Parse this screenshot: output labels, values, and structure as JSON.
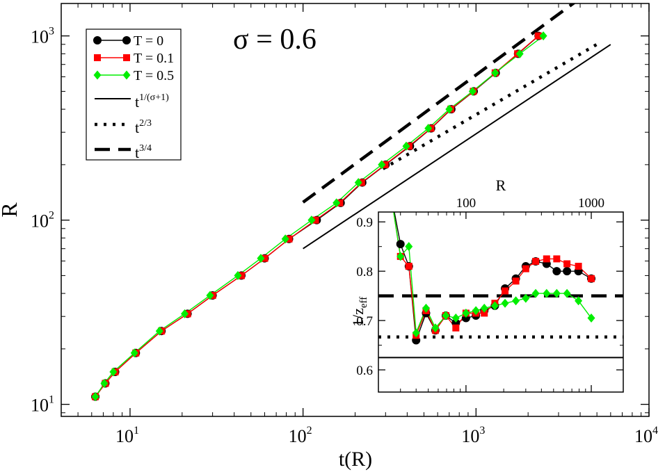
{
  "chart_data": [
    {
      "type": "line",
      "scale": "log-log",
      "annotation": "σ = 0.6",
      "xlabel": "t(R)",
      "ylabel": "R",
      "xlim": [
        4,
        10000
      ],
      "ylim": [
        8.6,
        1500
      ],
      "x_ticks": [
        {
          "value": 10,
          "base": "10",
          "exp": "1"
        },
        {
          "value": 100,
          "base": "10",
          "exp": "2"
        },
        {
          "value": 1000,
          "base": "10",
          "exp": "3"
        },
        {
          "value": 10000,
          "base": "10",
          "exp": "4"
        }
      ],
      "y_ticks": [
        {
          "value": 10,
          "base": "10",
          "exp": "1"
        },
        {
          "value": 100,
          "base": "10",
          "exp": "2"
        },
        {
          "value": 1000,
          "base": "10",
          "exp": "3"
        }
      ],
      "series": [
        {
          "name": "T = 0",
          "color": "#000000",
          "marker": "circle",
          "x": [
            6.3,
            7.2,
            8.2,
            10.8,
            15.2,
            21.5,
            30,
            44,
            60,
            83,
            120,
            165,
            220,
            300,
            415,
            550,
            720,
            970,
            1300,
            1750,
            2300
          ],
          "y": [
            11,
            13,
            15,
            19,
            25,
            31,
            39,
            50,
            62,
            79,
            100,
            124,
            160,
            200,
            252,
            315,
            400,
            500,
            630,
            800,
            1000
          ]
        },
        {
          "name": "T = 0.1",
          "color": "#ff0000",
          "marker": "square",
          "x": [
            6.3,
            7.2,
            8.2,
            10.8,
            15.2,
            21.5,
            30,
            44,
            60,
            83,
            118,
            163,
            218,
            298,
            410,
            548,
            715,
            965,
            1290,
            1740,
            2290
          ],
          "y": [
            11,
            13,
            15,
            19,
            25,
            31,
            39,
            50,
            62,
            79,
            100,
            124,
            160,
            200,
            252,
            315,
            400,
            500,
            630,
            800,
            1000
          ]
        },
        {
          "name": "T = 0.5",
          "color": "#00ee00",
          "marker": "diamond",
          "x": [
            6.3,
            7.1,
            8.0,
            10.6,
            14.8,
            20.7,
            29,
            42,
            57,
            79,
            112,
            156,
            209,
            285,
            395,
            530,
            700,
            955,
            1290,
            1790,
            2450
          ],
          "y": [
            11,
            13,
            15,
            19,
            25,
            31,
            39,
            50,
            62,
            79,
            100,
            124,
            160,
            200,
            252,
            315,
            400,
            500,
            630,
            800,
            1000
          ]
        }
      ],
      "reference_lines": [
        {
          "name": "t^{1/(σ+1)}",
          "base": "t",
          "exp": "1/(σ+1)",
          "style": "solid",
          "x": [
            100,
            6000
          ],
          "y": [
            70,
            898
          ]
        },
        {
          "name": "t^{2/3}",
          "base": "t",
          "exp": "2/3",
          "style": "dotted",
          "x": [
            290,
            5000
          ],
          "y": [
            190,
            900
          ]
        },
        {
          "name": "t^{3/4}",
          "base": "t",
          "exp": "3/4",
          "style": "dashed",
          "x": [
            100,
            4000
          ],
          "y": [
            125,
            1600
          ]
        }
      ],
      "legend_position": "top-left"
    },
    {
      "type": "line",
      "scale": "log-x",
      "inset": true,
      "xlabel": "R",
      "ylabel": "1/z_eff",
      "ylabel_base": "1/z",
      "ylabel_sub": "eff",
      "xlim": [
        20,
        1800
      ],
      "ylim": [
        0.555,
        0.92
      ],
      "x_ticks_top": [
        {
          "value": 100,
          "label": "100"
        },
        {
          "value": 1000,
          "label": "1000"
        }
      ],
      "y_ticks": [
        {
          "value": 0.6,
          "label": "0.6"
        },
        {
          "value": 0.7,
          "label": "0.7"
        },
        {
          "value": 0.8,
          "label": "0.8"
        },
        {
          "value": 0.9,
          "label": "0.9"
        }
      ],
      "hlines": [
        {
          "value": 0.75,
          "style": "dashed"
        },
        {
          "value": 0.6667,
          "style": "dotted"
        },
        {
          "value": 0.625,
          "style": "solid"
        }
      ],
      "series": [
        {
          "name": "T = 0",
          "color": "#000000",
          "marker": "circle",
          "x": [
            25,
            30,
            35,
            40,
            48,
            57,
            69,
            83,
            100,
            120,
            140,
            170,
            205,
            250,
            300,
            360,
            440,
            530,
            640,
            790,
            1000
          ],
          "y": [
            0.96,
            0.855,
            0.81,
            0.66,
            0.715,
            0.68,
            0.71,
            0.695,
            0.705,
            0.71,
            0.72,
            0.73,
            0.765,
            0.785,
            0.81,
            0.82,
            0.815,
            0.8,
            0.8,
            0.8,
            0.785
          ],
          "markers_from_index": 1
        },
        {
          "name": "T = 0.1",
          "color": "#ff0000",
          "marker": "square",
          "x": [
            25,
            30,
            35,
            40,
            48,
            57,
            69,
            83,
            100,
            120,
            140,
            170,
            205,
            250,
            300,
            360,
            440,
            530,
            640,
            790,
            1000
          ],
          "y": [
            0.96,
            0.83,
            0.81,
            0.67,
            0.72,
            0.68,
            0.71,
            0.685,
            0.715,
            0.715,
            0.715,
            0.735,
            0.76,
            0.78,
            0.805,
            0.82,
            0.825,
            0.825,
            0.815,
            0.81,
            0.785
          ],
          "markers_from_index": 1
        },
        {
          "name": "T = 0.5",
          "color": "#00ee00",
          "marker": "diamond",
          "x": [
            25,
            30,
            35,
            40,
            48,
            57,
            69,
            83,
            100,
            120,
            140,
            170,
            205,
            250,
            300,
            360,
            440,
            530,
            640,
            790,
            1000
          ],
          "y": [
            0.96,
            0.83,
            0.85,
            0.675,
            0.725,
            0.685,
            0.71,
            0.705,
            0.715,
            0.72,
            0.725,
            0.73,
            0.735,
            0.74,
            0.745,
            0.755,
            0.755,
            0.755,
            0.755,
            0.74,
            0.705
          ],
          "markers_from_index": 1
        }
      ]
    }
  ]
}
